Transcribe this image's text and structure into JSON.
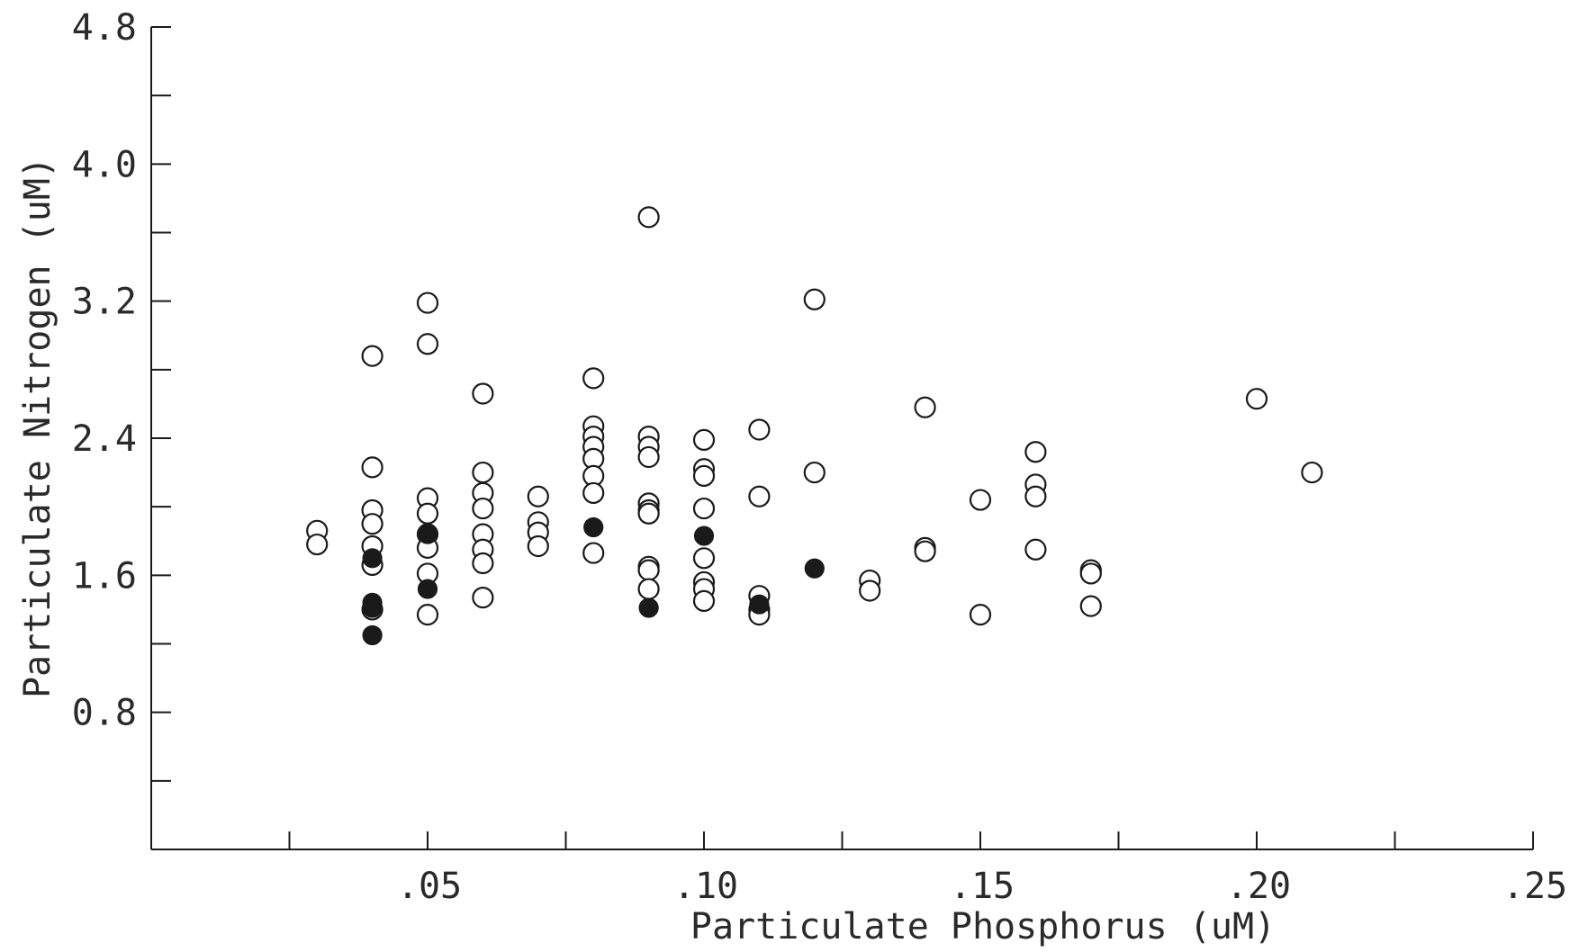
{
  "chart_data": {
    "type": "scatter",
    "xlabel": "Particulate Phosphorus (uM)",
    "ylabel": "Particulate Nitrogen (uM)",
    "xlim": [
      0,
      0.25
    ],
    "ylim": [
      0,
      4.8
    ],
    "x_ticks": [
      0.025,
      0.05,
      0.075,
      0.1,
      0.125,
      0.15,
      0.175,
      0.2,
      0.225,
      0.25
    ],
    "x_tick_labels": [
      {
        "value": 0.05,
        "label": ".05"
      },
      {
        "value": 0.1,
        "label": ".10"
      },
      {
        "value": 0.15,
        "label": ".15"
      },
      {
        "value": 0.2,
        "label": ".20"
      },
      {
        "value": 0.25,
        "label": ".25"
      }
    ],
    "y_ticks": [
      0.4,
      0.8,
      1.2,
      1.6,
      2.0,
      2.4,
      2.8,
      3.2,
      3.6,
      4.0,
      4.4,
      4.8
    ],
    "y_tick_labels": [
      {
        "value": 0.8,
        "label": "0.8"
      },
      {
        "value": 1.6,
        "label": "1.6"
      },
      {
        "value": 2.4,
        "label": "2.4"
      },
      {
        "value": 3.2,
        "label": "3.2"
      },
      {
        "value": 4.0,
        "label": "4.0"
      },
      {
        "value": 4.8,
        "label": "4.8"
      }
    ],
    "grid": false,
    "series": [
      {
        "marker": "open-circle",
        "points": [
          {
            "x": 0.03,
            "y": 1.86
          },
          {
            "x": 0.03,
            "y": 1.78
          },
          {
            "x": 0.04,
            "y": 2.88
          },
          {
            "x": 0.04,
            "y": 2.23
          },
          {
            "x": 0.04,
            "y": 1.98
          },
          {
            "x": 0.04,
            "y": 1.9
          },
          {
            "x": 0.04,
            "y": 1.77
          },
          {
            "x": 0.04,
            "y": 1.66
          },
          {
            "x": 0.04,
            "y": 1.4
          },
          {
            "x": 0.05,
            "y": 3.19
          },
          {
            "x": 0.05,
            "y": 2.95
          },
          {
            "x": 0.05,
            "y": 2.05
          },
          {
            "x": 0.05,
            "y": 1.96
          },
          {
            "x": 0.05,
            "y": 1.84
          },
          {
            "x": 0.05,
            "y": 1.76
          },
          {
            "x": 0.05,
            "y": 1.61
          },
          {
            "x": 0.05,
            "y": 1.37
          },
          {
            "x": 0.06,
            "y": 2.66
          },
          {
            "x": 0.06,
            "y": 2.2
          },
          {
            "x": 0.06,
            "y": 2.08
          },
          {
            "x": 0.06,
            "y": 1.99
          },
          {
            "x": 0.06,
            "y": 1.84
          },
          {
            "x": 0.06,
            "y": 1.75
          },
          {
            "x": 0.06,
            "y": 1.67
          },
          {
            "x": 0.06,
            "y": 1.47
          },
          {
            "x": 0.07,
            "y": 2.06
          },
          {
            "x": 0.07,
            "y": 1.91
          },
          {
            "x": 0.07,
            "y": 1.85
          },
          {
            "x": 0.07,
            "y": 1.77
          },
          {
            "x": 0.08,
            "y": 2.75
          },
          {
            "x": 0.08,
            "y": 2.47
          },
          {
            "x": 0.08,
            "y": 2.41
          },
          {
            "x": 0.08,
            "y": 2.35
          },
          {
            "x": 0.08,
            "y": 2.28
          },
          {
            "x": 0.08,
            "y": 2.18
          },
          {
            "x": 0.08,
            "y": 2.08
          },
          {
            "x": 0.08,
            "y": 1.73
          },
          {
            "x": 0.09,
            "y": 3.69
          },
          {
            "x": 0.09,
            "y": 2.41
          },
          {
            "x": 0.09,
            "y": 2.35
          },
          {
            "x": 0.09,
            "y": 2.29
          },
          {
            "x": 0.09,
            "y": 2.02
          },
          {
            "x": 0.09,
            "y": 1.98
          },
          {
            "x": 0.09,
            "y": 1.96
          },
          {
            "x": 0.09,
            "y": 1.65
          },
          {
            "x": 0.09,
            "y": 1.63
          },
          {
            "x": 0.09,
            "y": 1.52
          },
          {
            "x": 0.1,
            "y": 2.39
          },
          {
            "x": 0.1,
            "y": 2.22
          },
          {
            "x": 0.1,
            "y": 2.18
          },
          {
            "x": 0.1,
            "y": 1.99
          },
          {
            "x": 0.1,
            "y": 1.7
          },
          {
            "x": 0.1,
            "y": 1.56
          },
          {
            "x": 0.1,
            "y": 1.52
          },
          {
            "x": 0.1,
            "y": 1.45
          },
          {
            "x": 0.11,
            "y": 2.45
          },
          {
            "x": 0.11,
            "y": 2.06
          },
          {
            "x": 0.11,
            "y": 1.48
          },
          {
            "x": 0.11,
            "y": 1.4
          },
          {
            "x": 0.11,
            "y": 1.37
          },
          {
            "x": 0.12,
            "y": 3.21
          },
          {
            "x": 0.12,
            "y": 2.2
          },
          {
            "x": 0.13,
            "y": 1.57
          },
          {
            "x": 0.13,
            "y": 1.51
          },
          {
            "x": 0.14,
            "y": 2.58
          },
          {
            "x": 0.14,
            "y": 1.76
          },
          {
            "x": 0.14,
            "y": 1.74
          },
          {
            "x": 0.15,
            "y": 2.04
          },
          {
            "x": 0.15,
            "y": 1.37
          },
          {
            "x": 0.16,
            "y": 2.32
          },
          {
            "x": 0.16,
            "y": 2.13
          },
          {
            "x": 0.16,
            "y": 2.06
          },
          {
            "x": 0.16,
            "y": 1.75
          },
          {
            "x": 0.17,
            "y": 1.63
          },
          {
            "x": 0.17,
            "y": 1.61
          },
          {
            "x": 0.17,
            "y": 1.42
          },
          {
            "x": 0.2,
            "y": 2.63
          },
          {
            "x": 0.21,
            "y": 2.2
          }
        ]
      },
      {
        "marker": "filled-circle",
        "points": [
          {
            "x": 0.04,
            "y": 1.7
          },
          {
            "x": 0.04,
            "y": 1.44
          },
          {
            "x": 0.04,
            "y": 1.41
          },
          {
            "x": 0.04,
            "y": 1.25
          },
          {
            "x": 0.05,
            "y": 1.84
          },
          {
            "x": 0.05,
            "y": 1.52
          },
          {
            "x": 0.08,
            "y": 1.88
          },
          {
            "x": 0.09,
            "y": 1.41
          },
          {
            "x": 0.1,
            "y": 1.83
          },
          {
            "x": 0.11,
            "y": 1.43
          },
          {
            "x": 0.12,
            "y": 1.64
          }
        ]
      }
    ]
  }
}
